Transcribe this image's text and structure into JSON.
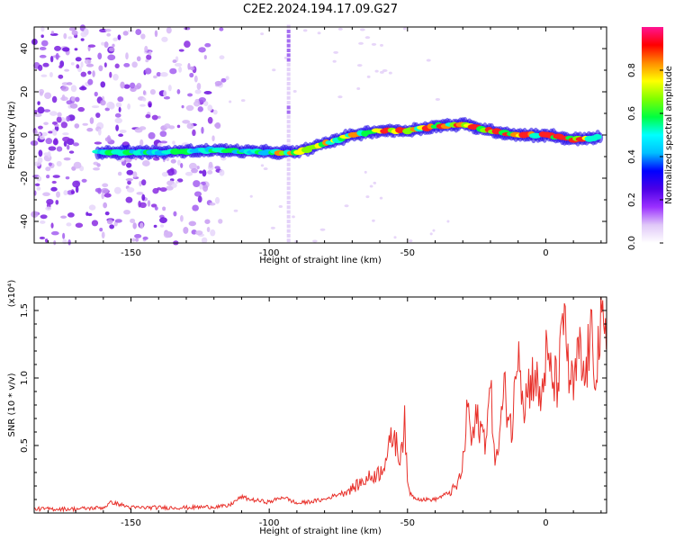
{
  "figure_title": "C2E2.2024.194.17.09.G27",
  "chart_data": [
    {
      "type": "heatmap",
      "title": "C2E2.2024.194.17.09.G27",
      "xlabel": "Height of straight line (km)",
      "ylabel": "Frequency (Hz)",
      "xlim": [
        -185,
        22
      ],
      "ylim": [
        -50,
        50
      ],
      "xticks": [
        -150,
        -100,
        -50,
        0
      ],
      "xtick_labels": [
        "-150",
        "-100",
        "-50",
        "0"
      ],
      "yticks": [
        -40,
        -20,
        0,
        20,
        40
      ],
      "ytick_labels": [
        "-40",
        "-20",
        "0",
        "20",
        "40"
      ],
      "colorbar": {
        "label": "Normalized spectral amplitude",
        "range": [
          0,
          1
        ],
        "ticks": [
          0.0,
          0.2,
          0.4,
          0.6,
          0.8
        ],
        "tick_labels": [
          "0.0",
          "0.2",
          "0.4",
          "0.6",
          "0.8"
        ],
        "colormap": [
          "#ffffff",
          "#e0c8f8",
          "#9b30ff",
          "#4b00e6",
          "#0000ff",
          "#00bfff",
          "#00ffff",
          "#00ff40",
          "#7fff00",
          "#ffff00",
          "#ff8c00",
          "#ff0000",
          "#ff1493"
        ]
      },
      "ridge": {
        "x": [
          -162,
          -150,
          -140,
          -120,
          -100,
          -90,
          -80,
          -70,
          -60,
          -50,
          -40,
          -30,
          -20,
          -10,
          0,
          10,
          20
        ],
        "y": [
          -8,
          -8,
          -8,
          -7,
          -8,
          -8,
          -4,
          0,
          2,
          2,
          4,
          5,
          2,
          0,
          0,
          -2,
          -1
        ]
      },
      "noise_region_x": [
        -185,
        -115
      ],
      "grid": false
    },
    {
      "type": "line",
      "xlabel": "Height of straight line (km)",
      "ylabel": "SNR (10 * v/v)",
      "y_multiplier": "(x10⁴)",
      "xlim": [
        -185,
        22
      ],
      "ylim": [
        0,
        1.6
      ],
      "xticks": [
        -150,
        -100,
        -50,
        0
      ],
      "xtick_labels": [
        "-150",
        "-100",
        "-50",
        "0"
      ],
      "yticks": [
        0.5,
        1.0,
        1.5
      ],
      "ytick_labels": [
        "0.5",
        "1.0",
        "1.5"
      ],
      "series": [
        {
          "color": "#e8302a",
          "x": [
            -185,
            -170,
            -160,
            -157,
            -150,
            -130,
            -115,
            -110,
            -107,
            -100,
            -95,
            -90,
            -80,
            -70,
            -65,
            -60,
            -57,
            -55,
            -53,
            -51,
            -50,
            -48,
            -45,
            -40,
            -35,
            -32,
            -30,
            -28,
            -27,
            -25,
            -22,
            -20,
            -18,
            -15,
            -12,
            -10,
            -8,
            -6,
            -4,
            -2,
            0,
            2,
            4,
            6,
            7,
            8,
            10,
            12,
            14,
            16,
            18,
            20,
            22
          ],
          "y": [
            0.03,
            0.03,
            0.04,
            0.08,
            0.04,
            0.04,
            0.05,
            0.12,
            0.1,
            0.08,
            0.12,
            0.07,
            0.1,
            0.18,
            0.25,
            0.3,
            0.45,
            0.6,
            0.4,
            0.66,
            0.2,
            0.12,
            0.1,
            0.1,
            0.15,
            0.2,
            0.35,
            0.85,
            0.5,
            0.7,
            0.55,
            0.9,
            0.35,
            0.9,
            0.6,
            1.38,
            0.8,
            0.95,
            1.05,
            0.8,
            1.15,
            1.0,
            0.95,
            1.25,
            1.6,
            1.05,
            0.9,
            1.2,
            0.95,
            1.3,
            1.1,
            1.35,
            1.2
          ]
        }
      ],
      "grid": false
    }
  ]
}
